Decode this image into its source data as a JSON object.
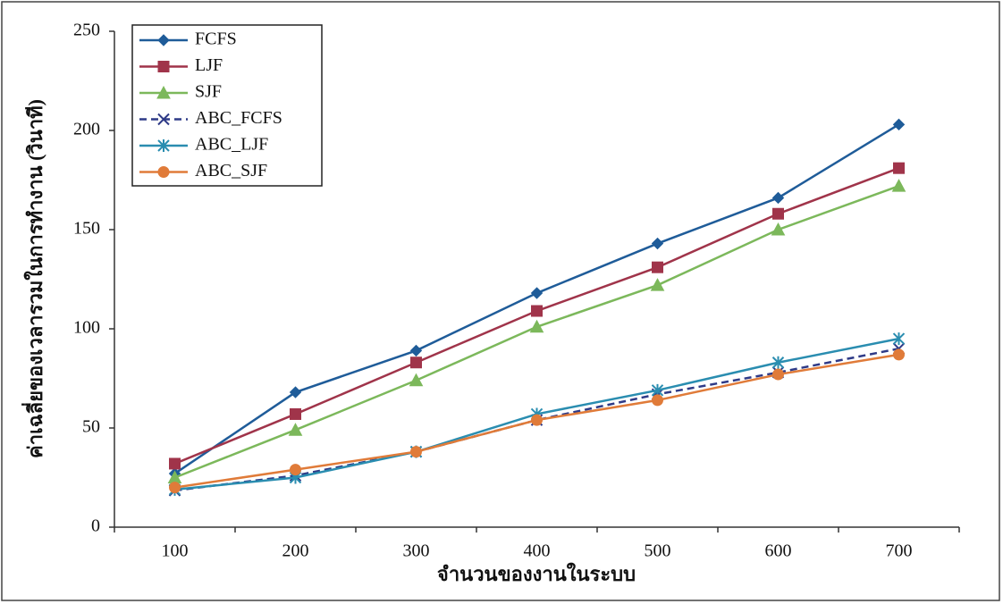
{
  "chart_data": {
    "type": "line",
    "xlabel": "จำนวนของงานในระบบ",
    "ylabel": "ค่าเฉลี่ยของเวลารวมในการทำงาน (วินาที)",
    "categories": [
      "100",
      "200",
      "300",
      "400",
      "500",
      "600",
      "700"
    ],
    "ylim": [
      0,
      250
    ],
    "yticks": [
      0,
      50,
      100,
      150,
      200,
      250
    ],
    "legend": "upper-left",
    "series": [
      {
        "name": "FCFS",
        "color": "#1f5c99",
        "marker": "diamond",
        "dashed": false,
        "values": [
          27,
          68,
          89,
          118,
          143,
          166,
          203
        ]
      },
      {
        "name": "LJF",
        "color": "#a0344a",
        "marker": "square",
        "dashed": false,
        "values": [
          32,
          57,
          83,
          109,
          131,
          158,
          181
        ]
      },
      {
        "name": "SJF",
        "color": "#7cb85b",
        "marker": "triangle",
        "dashed": false,
        "values": [
          25,
          49,
          74,
          101,
          122,
          150,
          172
        ]
      },
      {
        "name": "ABC_FCFS",
        "color": "#2e3a87",
        "marker": "x",
        "dashed": true,
        "values": [
          18.5,
          26,
          38,
          54,
          67,
          78,
          90
        ]
      },
      {
        "name": "ABC_LJF",
        "color": "#2a8db0",
        "marker": "star",
        "dashed": false,
        "values": [
          19,
          25,
          38,
          57,
          69,
          83,
          95
        ]
      },
      {
        "name": "ABC_SJF",
        "color": "#e07b39",
        "marker": "circle",
        "dashed": false,
        "values": [
          20,
          29,
          38,
          54,
          64,
          77,
          87
        ]
      }
    ]
  }
}
